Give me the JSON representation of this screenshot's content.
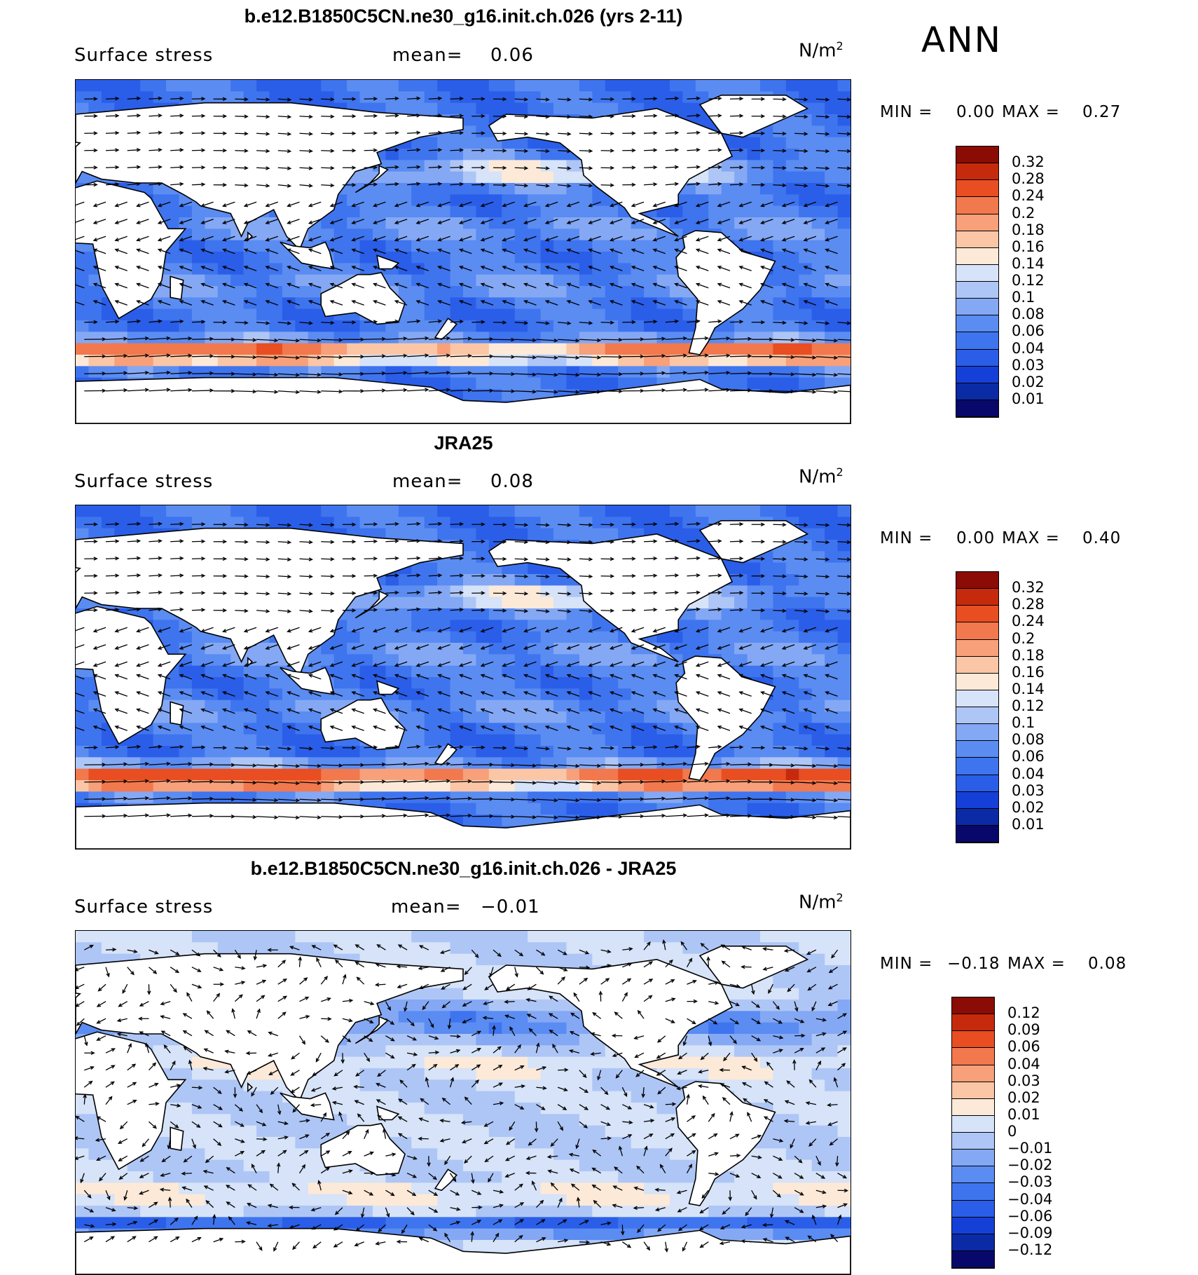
{
  "season": "ANN",
  "palette": {
    "abs": [
      "#08086b",
      "#0b2aa6",
      "#1540d8",
      "#2a5ee8",
      "#3f74ef",
      "#5a8cf2",
      "#84a8f4",
      "#aec6f6",
      "#d6e3f8",
      "#fde9d8",
      "#fbc6a6",
      "#f7a07a",
      "#f2784d",
      "#e84e21",
      "#c62a0c",
      "#8a0c04"
    ],
    "diff": [
      "#08086b",
      "#0b2aa6",
      "#1540d8",
      "#2a5ee8",
      "#3f74ef",
      "#5a8cf2",
      "#84a8f4",
      "#aec6f6",
      "#d6e3f8",
      "#fde9d8",
      "#fbc6a6",
      "#f7a07a",
      "#f2784d",
      "#e84e21",
      "#c62a0c",
      "#8a0c04"
    ],
    "land": "#ffffff",
    "coast": "#000000",
    "arrow": "#000000"
  },
  "chart_data": [
    {
      "type": "heatmap",
      "title": "b.e12.B1850C5CN.ne30_g16.init.ch.026 (yrs 2-11)",
      "variable": "Surface stress",
      "mean_label": "mean=",
      "mean": "0.06",
      "units": "N/m",
      "units_sup": "2",
      "min_label": "MIN =",
      "min": "0.00",
      "max_label": "MAX =",
      "max": "0.27",
      "colorbar_levels": [
        "0.32",
        "0.28",
        "0.24",
        "0.2",
        "0.18",
        "0.16",
        "0.14",
        "0.12",
        "0.1",
        "0.08",
        "0.06",
        "0.04",
        "0.03",
        "0.02",
        "0.01"
      ],
      "overlay": "wind stress vectors"
    },
    {
      "type": "heatmap",
      "title": "JRA25",
      "variable": "Surface stress",
      "mean_label": "mean=",
      "mean": "0.08",
      "units": "N/m",
      "units_sup": "2",
      "min_label": "MIN =",
      "min": "0.00",
      "max_label": "MAX =",
      "max": "0.40",
      "colorbar_levels": [
        "0.32",
        "0.28",
        "0.24",
        "0.2",
        "0.18",
        "0.16",
        "0.14",
        "0.12",
        "0.1",
        "0.08",
        "0.06",
        "0.04",
        "0.03",
        "0.02",
        "0.01"
      ],
      "overlay": "wind stress vectors"
    },
    {
      "type": "heatmap",
      "title": "b.e12.B1850C5CN.ne30_g16.init.ch.026 - JRA25",
      "variable": "Surface stress",
      "mean_label": "mean=",
      "mean": "−0.01",
      "units": "N/m",
      "units_sup": "2",
      "min_label": "MIN =",
      "min": "−0.18",
      "max_label": "MAX =",
      "max": "0.08",
      "colorbar_levels": [
        "0.12",
        "0.09",
        "0.06",
        "0.04",
        "0.03",
        "0.02",
        "0.01",
        "0",
        "−0.01",
        "−0.02",
        "−0.03",
        "−0.04",
        "−0.06",
        "−0.09",
        "−0.12"
      ],
      "overlay": "wind stress difference vectors"
    }
  ]
}
